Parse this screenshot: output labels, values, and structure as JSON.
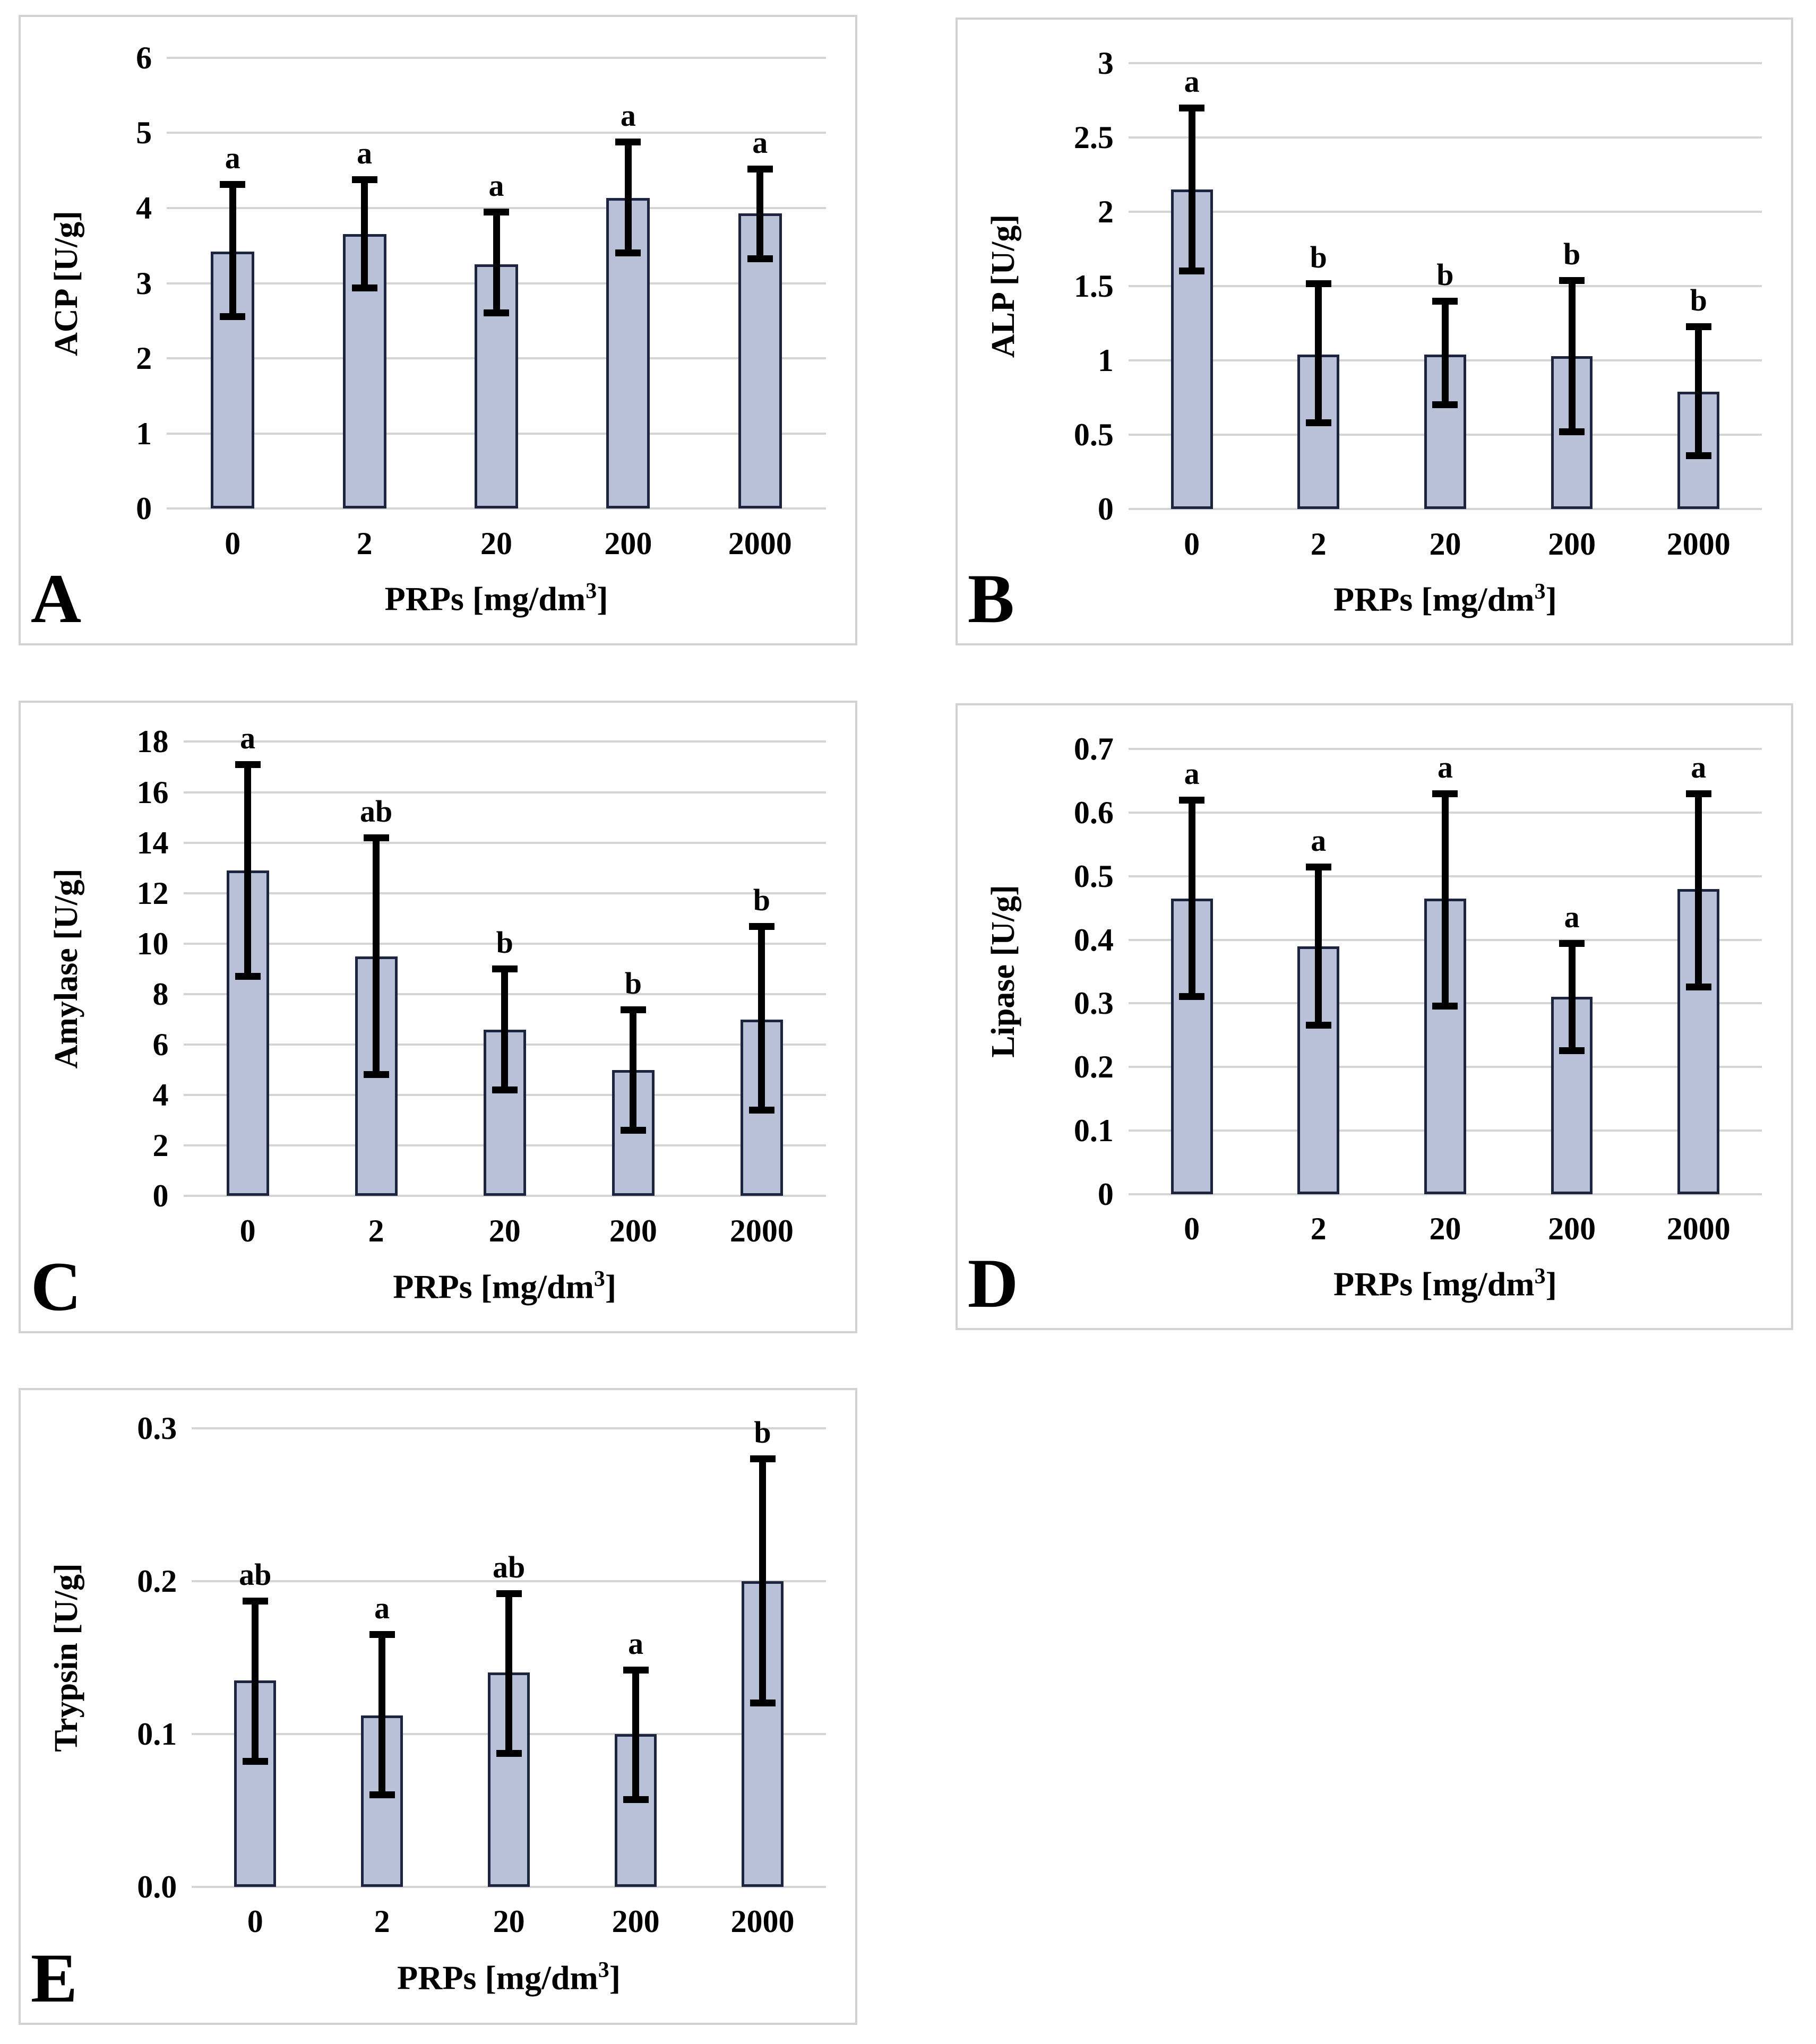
{
  "figure": {
    "background": "#ffffff",
    "bar_fill_color": "#b9c1d8",
    "bar_border_color": "#1c2440",
    "gridline_color": "#d4d4d4",
    "panel_border_color": "#d2d2d2",
    "error_bar_color": "#000000"
  },
  "chart_data": [
    {
      "type": "bar",
      "panel_label": "A",
      "ylabel": "ACP [U/g]",
      "xlabel_pre": "PRPs [mg/dm",
      "xlabel_sup": "3",
      "xlabel_post": "]",
      "categories": [
        "0",
        "2",
        "20",
        "200",
        "2000"
      ],
      "values": [
        3.42,
        3.65,
        3.25,
        4.13,
        3.93
      ],
      "err_low": [
        2.55,
        2.93,
        2.6,
        3.4,
        3.32
      ],
      "err_high": [
        4.32,
        4.38,
        3.95,
        4.88,
        4.52
      ],
      "sig_letters": [
        "a",
        "a",
        "a",
        "a",
        "a"
      ],
      "ylim": [
        0,
        6
      ],
      "yticks": [
        0,
        1,
        2,
        3,
        4,
        5,
        6
      ],
      "ytick_labels": [
        "0",
        "1",
        "2",
        "3",
        "4",
        "5",
        "6"
      ],
      "grid": true,
      "legend": "none"
    },
    {
      "type": "bar",
      "panel_label": "B",
      "ylabel": "ALP [U/g]",
      "xlabel_pre": "PRPs [mg/dm",
      "xlabel_sup": "3",
      "xlabel_post": "]",
      "categories": [
        "0",
        "2",
        "20",
        "200",
        "2000"
      ],
      "values": [
        2.15,
        1.04,
        1.04,
        1.03,
        0.79
      ],
      "err_low": [
        1.6,
        0.58,
        0.7,
        0.52,
        0.36
      ],
      "err_high": [
        2.7,
        1.52,
        1.4,
        1.54,
        1.23
      ],
      "sig_letters": [
        "a",
        "b",
        "b",
        "b",
        "b"
      ],
      "ylim": [
        0,
        3
      ],
      "yticks": [
        0,
        0.5,
        1,
        1.5,
        2,
        2.5,
        3
      ],
      "ytick_labels": [
        "0",
        "0.5",
        "1",
        "1.5",
        "2",
        "2.5",
        "3"
      ],
      "grid": true,
      "legend": "none"
    },
    {
      "type": "bar",
      "panel_label": "C",
      "ylabel": "Amylase [U/g]",
      "xlabel_pre": "PRPs [mg/dm",
      "xlabel_sup": "3",
      "xlabel_post": "]",
      "categories": [
        "0",
        "2",
        "20",
        "200",
        "2000"
      ],
      "values": [
        12.9,
        9.5,
        6.6,
        5.0,
        7.0
      ],
      "err_low": [
        8.7,
        4.8,
        4.2,
        2.6,
        3.4
      ],
      "err_high": [
        17.1,
        14.2,
        9.0,
        7.4,
        10.7
      ],
      "sig_letters": [
        "a",
        "ab",
        "b",
        "b",
        "b"
      ],
      "ylim": [
        0,
        18
      ],
      "yticks": [
        0,
        2,
        4,
        6,
        8,
        10,
        12,
        14,
        16,
        18
      ],
      "ytick_labels": [
        "0",
        "2",
        "4",
        "6",
        "8",
        "10",
        "12",
        "14",
        "16",
        "18"
      ],
      "grid": true,
      "legend": "none"
    },
    {
      "type": "bar",
      "panel_label": "D",
      "ylabel": "Lipase [U/g]",
      "xlabel_pre": "PRPs [mg/dm",
      "xlabel_sup": "3",
      "xlabel_post": "]",
      "categories": [
        "0",
        "2",
        "20",
        "200",
        "2000"
      ],
      "values": [
        0.465,
        0.39,
        0.465,
        0.31,
        0.48
      ],
      "err_low": [
        0.31,
        0.265,
        0.295,
        0.225,
        0.325
      ],
      "err_high": [
        0.62,
        0.515,
        0.63,
        0.395,
        0.63
      ],
      "sig_letters": [
        "a",
        "a",
        "a",
        "a",
        "a"
      ],
      "ylim": [
        0,
        0.7
      ],
      "yticks": [
        0,
        0.1,
        0.2,
        0.3,
        0.4,
        0.5,
        0.6,
        0.7
      ],
      "ytick_labels": [
        "0",
        "0.1",
        "0.2",
        "0.3",
        "0.4",
        "0.5",
        "0.6",
        "0.7"
      ],
      "grid": true,
      "legend": "none"
    },
    {
      "type": "bar",
      "panel_label": "E",
      "ylabel": "Trypsin  [U/g]",
      "xlabel_pre": "PRPs [mg/dm",
      "xlabel_sup": "3",
      "xlabel_post": "]",
      "categories": [
        "0",
        "2",
        "20",
        "200",
        "2000"
      ],
      "values": [
        0.135,
        0.112,
        0.14,
        0.1,
        0.2
      ],
      "err_low": [
        0.082,
        0.06,
        0.087,
        0.057,
        0.12
      ],
      "err_high": [
        0.187,
        0.165,
        0.192,
        0.142,
        0.28
      ],
      "sig_letters": [
        "ab",
        "a",
        "ab",
        "a",
        "b"
      ],
      "ylim": [
        0,
        0.3
      ],
      "yticks": [
        0,
        0.1,
        0.2,
        0.3
      ],
      "ytick_labels": [
        "0.0",
        "0.1",
        "0.2",
        "0.3"
      ],
      "grid": true,
      "legend": "none"
    }
  ]
}
